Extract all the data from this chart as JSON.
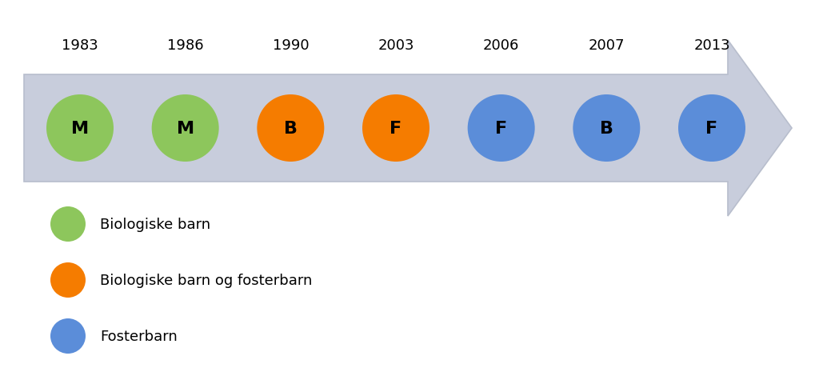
{
  "years": [
    "1983",
    "1986",
    "1990",
    "2003",
    "2006",
    "2007",
    "2013"
  ],
  "labels": [
    "M",
    "M",
    "B",
    "F",
    "F",
    "B",
    "F"
  ],
  "colors": [
    "#8DC65C",
    "#8DC65C",
    "#F57C00",
    "#F57C00",
    "#5B8DD9",
    "#5B8DD9",
    "#5B8DD9"
  ],
  "arrow_color": "#C8CDDC",
  "arrow_edge_color": "#B8BECD",
  "background_color": "#ffffff",
  "legend_items": [
    {
      "color": "#8DC65C",
      "label": "Biologiske barn"
    },
    {
      "color": "#F57C00",
      "label": "Biologiske barn og fosterbarn"
    },
    {
      "color": "#5B8DD9",
      "label": "Fosterbarn"
    }
  ],
  "font_size_year": 13,
  "font_size_label": 16,
  "font_size_legend": 13
}
